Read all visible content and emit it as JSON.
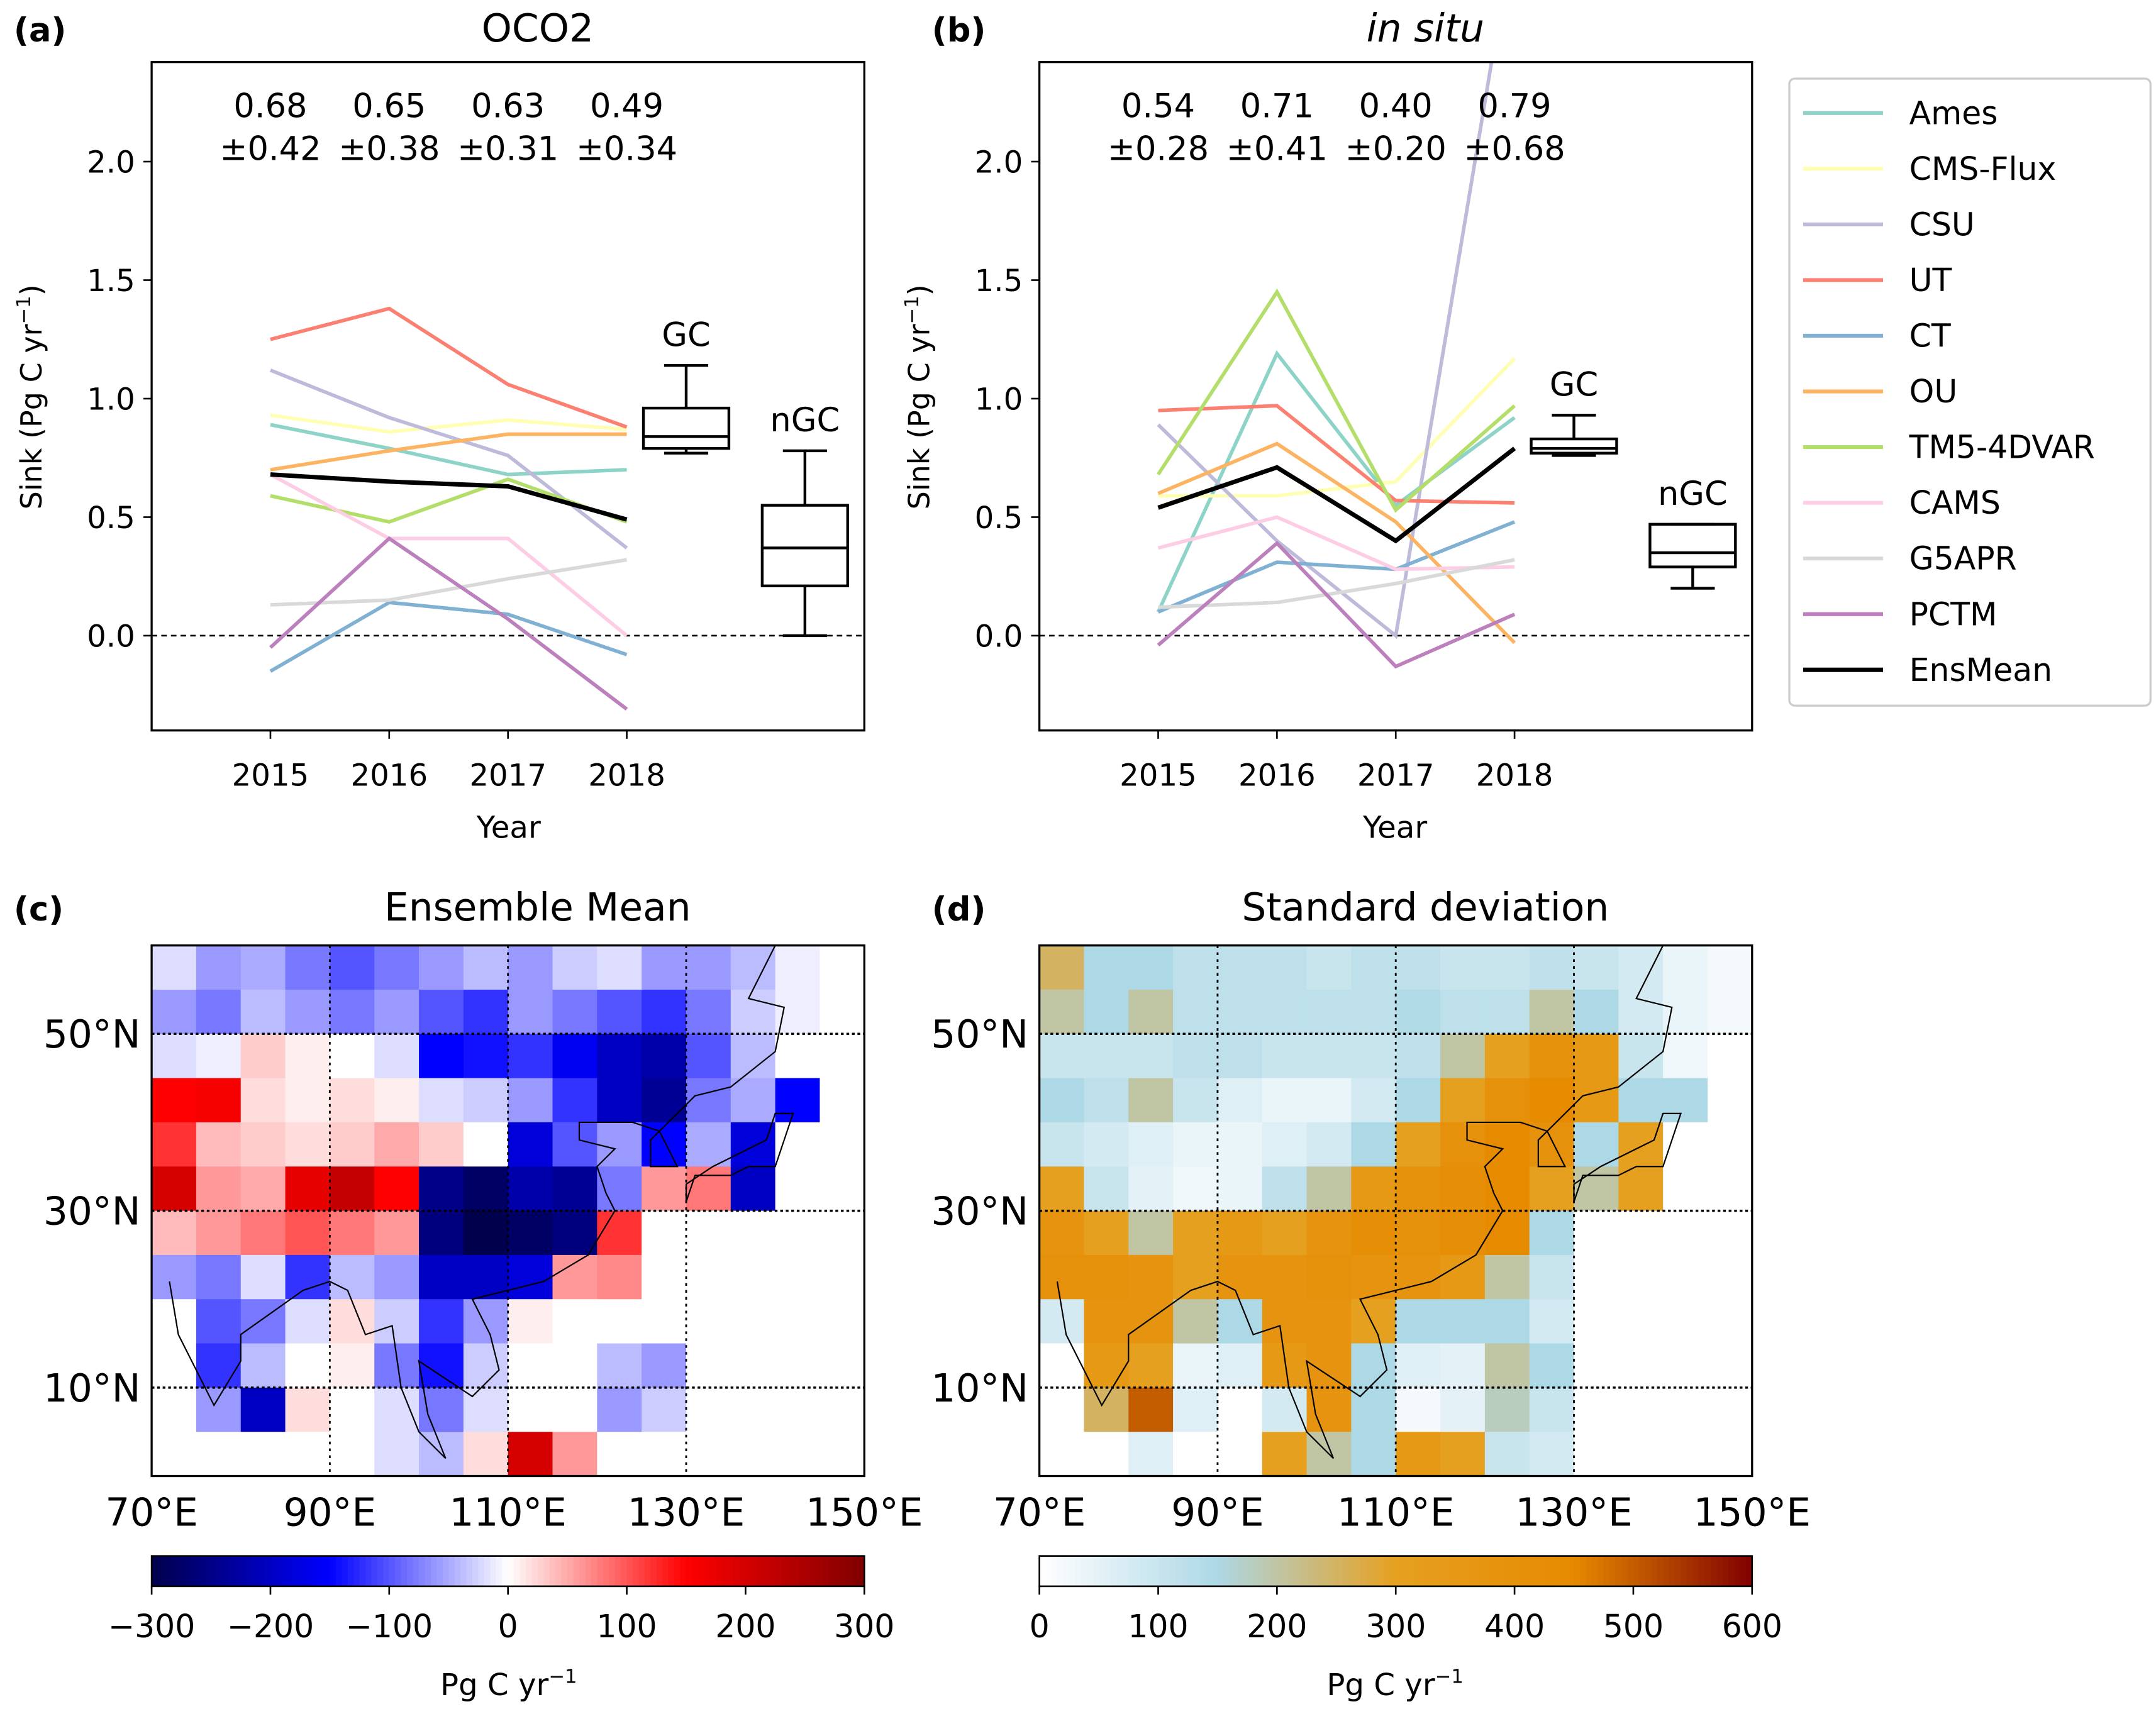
{
  "chart_data": [
    {
      "type": "line",
      "panel": "(a)",
      "title": "OCO2",
      "xlabel": "Year",
      "ylabel": "Sink (Pg C yr",
      "ylabel_sup": "−1",
      "ylabel_end": ")",
      "x": [
        2015,
        2016,
        2017,
        2018
      ],
      "xticks": [
        "2015",
        "2016",
        "2017",
        "2018"
      ],
      "yticks": [
        "0.0",
        "0.5",
        "1.0",
        "1.5",
        "2.0"
      ],
      "ylim": [
        -0.4,
        2.42
      ],
      "xlim": [
        2014,
        2020
      ],
      "zero_line": true,
      "annotations": {
        "means": [
          "0.68",
          "0.65",
          "0.63",
          "0.49"
        ],
        "stds": [
          "±0.42",
          "±0.38",
          "±0.31",
          "±0.34"
        ]
      },
      "series": [
        {
          "name": "Ames",
          "values": [
            0.89,
            0.79,
            0.68,
            0.7
          ]
        },
        {
          "name": "CMS-Flux",
          "values": [
            0.93,
            0.86,
            0.91,
            0.87
          ]
        },
        {
          "name": "CSU",
          "values": [
            1.12,
            0.92,
            0.76,
            0.37
          ]
        },
        {
          "name": "UT",
          "values": [
            1.25,
            1.38,
            1.06,
            0.88
          ]
        },
        {
          "name": "CT",
          "values": [
            -0.15,
            0.14,
            0.09,
            -0.08
          ]
        },
        {
          "name": "OU",
          "values": [
            0.7,
            0.78,
            0.85,
            0.85
          ]
        },
        {
          "name": "TM5-4DVAR",
          "values": [
            0.59,
            0.48,
            0.66,
            0.48
          ]
        },
        {
          "name": "CAMS",
          "values": [
            0.68,
            0.41,
            0.41,
            0.0
          ]
        },
        {
          "name": "G5APR",
          "values": [
            0.13,
            0.15,
            0.24,
            0.32
          ]
        },
        {
          "name": "PCTM",
          "values": [
            -0.05,
            0.41,
            0.07,
            -0.31
          ]
        },
        {
          "name": "EnsMean",
          "values": [
            0.68,
            0.65,
            0.63,
            0.49
          ]
        }
      ],
      "boxes": [
        {
          "label": "GC",
          "x": 2018.5,
          "whislo": 0.77,
          "q1": 0.79,
          "med": 0.84,
          "q3": 0.96,
          "whishi": 1.14
        },
        {
          "label": "nGC",
          "x": 2019.5,
          "whislo": 0.0,
          "q1": 0.21,
          "med": 0.37,
          "q3": 0.55,
          "whishi": 0.78
        }
      ]
    },
    {
      "type": "line",
      "panel": "(b)",
      "title": "in situ",
      "xlabel": "Year",
      "ylabel": "Sink (Pg C yr",
      "ylabel_sup": "−1",
      "ylabel_end": ")",
      "x": [
        2015,
        2016,
        2017,
        2018
      ],
      "xticks": [
        "2015",
        "2016",
        "2017",
        "2018"
      ],
      "yticks": [
        "0.0",
        "0.5",
        "1.0",
        "1.5",
        "2.0"
      ],
      "ylim": [
        -0.4,
        2.42
      ],
      "xlim": [
        2014,
        2020
      ],
      "zero_line": true,
      "annotations": {
        "means": [
          "0.54",
          "0.71",
          "0.40",
          "0.79"
        ],
        "stds": [
          "±0.28",
          "±0.41",
          "±0.20",
          "±0.68"
        ]
      },
      "series": [
        {
          "name": "Ames",
          "values": [
            0.1,
            1.19,
            0.55,
            0.92
          ]
        },
        {
          "name": "CMS-Flux",
          "values": [
            0.59,
            0.59,
            0.65,
            1.17
          ]
        },
        {
          "name": "CSU",
          "values": [
            0.89,
            0.4,
            0.0,
            3.0
          ]
        },
        {
          "name": "UT",
          "values": [
            0.95,
            0.97,
            0.57,
            0.56
          ]
        },
        {
          "name": "CT",
          "values": [
            0.1,
            0.31,
            0.28,
            0.48
          ]
        },
        {
          "name": "OU",
          "values": [
            0.6,
            0.81,
            0.48,
            -0.03
          ]
        },
        {
          "name": "TM5-4DVAR",
          "values": [
            0.68,
            1.45,
            0.53,
            0.97
          ]
        },
        {
          "name": "CAMS",
          "values": [
            0.37,
            0.5,
            0.28,
            0.29
          ]
        },
        {
          "name": "G5APR",
          "values": [
            0.12,
            0.14,
            0.22,
            0.32
          ]
        },
        {
          "name": "PCTM",
          "values": [
            -0.04,
            0.39,
            -0.13,
            0.09
          ]
        },
        {
          "name": "EnsMean",
          "values": [
            0.54,
            0.71,
            0.4,
            0.79
          ]
        }
      ],
      "boxes": [
        {
          "label": "GC",
          "x": 2018.5,
          "whislo": 0.76,
          "q1": 0.77,
          "med": 0.79,
          "q3": 0.83,
          "whishi": 0.93
        },
        {
          "label": "nGC",
          "x": 2019.5,
          "whislo": 0.2,
          "q1": 0.29,
          "med": 0.35,
          "q3": 0.47,
          "whishi": 0.47
        }
      ]
    },
    {
      "type": "heatmap",
      "panel": "(c)",
      "title": "Ensemble Mean",
      "lon_range": [
        70,
        150
      ],
      "lat_range": [
        0,
        60
      ],
      "cell_deg": 5,
      "lon_ticks": [
        "70°E",
        "90°E",
        "110°E",
        "130°E",
        "150°E"
      ],
      "lat_ticks": [
        "50°N",
        "30°N",
        "10°N"
      ],
      "colorbar": {
        "min": -300,
        "max": 300,
        "ticks": [
          "−300",
          "−200",
          "−100",
          "0",
          "100",
          "200",
          "300"
        ],
        "label": "Pg C yr",
        "label_sup": "−1",
        "colormap": [
          "#00004c",
          "#0000ff",
          "#ffffff",
          "#ff0000",
          "#800000"
        ]
      },
      "grid_rows_north_to_south": [
        [
          -20,
          -60,
          -50,
          -80,
          -100,
          -80,
          -60,
          -40,
          -60,
          -30,
          -20,
          -60,
          -60,
          -40,
          -10,
          0
        ],
        [
          -60,
          -80,
          -40,
          -60,
          -80,
          -60,
          -100,
          -120,
          -60,
          -80,
          -100,
          -120,
          -80,
          -30,
          -10,
          0
        ],
        [
          -20,
          -10,
          30,
          10,
          0,
          -20,
          -150,
          -140,
          -120,
          -160,
          -200,
          -220,
          -100,
          -40,
          0,
          0
        ],
        [
          150,
          160,
          20,
          10,
          20,
          10,
          -20,
          -30,
          -60,
          -120,
          -200,
          -240,
          -80,
          -50,
          -150,
          0
        ],
        [
          120,
          40,
          30,
          20,
          30,
          50,
          30,
          0,
          -180,
          -100,
          -60,
          -150,
          -50,
          -180,
          0,
          0
        ],
        [
          200,
          60,
          50,
          180,
          220,
          150,
          -250,
          -280,
          -220,
          -240,
          -80,
          60,
          80,
          -200,
          0,
          0
        ],
        [
          40,
          60,
          80,
          100,
          80,
          60,
          -260,
          -300,
          -280,
          -260,
          120,
          0,
          0,
          0,
          0,
          0
        ],
        [
          -60,
          -80,
          -20,
          -120,
          -40,
          -60,
          -200,
          -200,
          -180,
          60,
          70,
          0,
          0,
          0,
          0,
          0
        ],
        [
          0,
          -100,
          -80,
          -20,
          20,
          -30,
          -120,
          -60,
          10,
          0,
          0,
          0,
          0,
          0,
          0,
          0
        ],
        [
          0,
          -120,
          -40,
          0,
          10,
          -80,
          -140,
          -30,
          0,
          0,
          -40,
          -60,
          0,
          0,
          0,
          0
        ],
        [
          0,
          -60,
          -200,
          20,
          0,
          -20,
          -80,
          -20,
          0,
          0,
          -60,
          -30,
          0,
          0,
          0,
          0
        ],
        [
          0,
          0,
          0,
          0,
          0,
          -20,
          -40,
          20,
          200,
          60,
          0,
          0,
          0,
          0,
          0,
          0
        ]
      ]
    },
    {
      "type": "heatmap",
      "panel": "(d)",
      "title": "Standard deviation",
      "lon_range": [
        70,
        150
      ],
      "lat_range": [
        0,
        60
      ],
      "cell_deg": 5,
      "lon_ticks": [
        "70°E",
        "90°E",
        "110°E",
        "130°E",
        "150°E"
      ],
      "lat_ticks": [
        "50°N",
        "30°N",
        "10°N"
      ],
      "colorbar": {
        "min": 0,
        "max": 600,
        "ticks": [
          "0",
          "100",
          "200",
          "300",
          "400",
          "500",
          "600"
        ],
        "label": "Pg C yr",
        "label_sup": "−1",
        "colormap": [
          "#ffffff",
          "#add8e6",
          "#e6a020",
          "#e68a00",
          "#800000"
        ]
      },
      "grid_rows_north_to_south": [
        [
          250,
          150,
          150,
          120,
          120,
          120,
          100,
          120,
          120,
          100,
          100,
          120,
          100,
          80,
          40,
          20
        ],
        [
          200,
          150,
          200,
          120,
          120,
          120,
          120,
          120,
          140,
          120,
          120,
          200,
          150,
          80,
          40,
          20
        ],
        [
          100,
          100,
          100,
          120,
          120,
          100,
          100,
          100,
          120,
          200,
          300,
          400,
          350,
          100,
          30,
          0
        ],
        [
          150,
          120,
          200,
          100,
          60,
          40,
          40,
          80,
          150,
          300,
          400,
          450,
          350,
          150,
          150,
          0
        ],
        [
          100,
          80,
          60,
          40,
          40,
          60,
          80,
          150,
          300,
          400,
          450,
          400,
          150,
          300,
          0,
          0
        ],
        [
          300,
          100,
          50,
          30,
          40,
          120,
          200,
          350,
          400,
          420,
          450,
          300,
          200,
          300,
          0,
          0
        ],
        [
          380,
          300,
          200,
          300,
          350,
          300,
          380,
          420,
          400,
          420,
          450,
          150,
          0,
          0,
          0,
          0
        ],
        [
          400,
          400,
          380,
          300,
          380,
          380,
          400,
          380,
          380,
          350,
          200,
          100,
          0,
          0,
          0,
          0
        ],
        [
          80,
          380,
          380,
          200,
          150,
          380,
          380,
          300,
          150,
          150,
          150,
          80,
          0,
          0,
          0,
          0
        ],
        [
          0,
          350,
          300,
          40,
          60,
          350,
          380,
          150,
          60,
          50,
          200,
          150,
          0,
          0,
          0,
          0
        ],
        [
          0,
          250,
          500,
          60,
          0,
          80,
          380,
          150,
          20,
          50,
          180,
          100,
          0,
          0,
          0,
          0
        ],
        [
          0,
          0,
          60,
          0,
          0,
          300,
          200,
          150,
          350,
          300,
          100,
          80,
          0,
          0,
          0,
          0
        ]
      ]
    }
  ],
  "legend": {
    "entries": [
      "Ames",
      "CMS-Flux",
      "CSU",
      "UT",
      "CT",
      "OU",
      "TM5-4DVAR",
      "CAMS",
      "G5APR",
      "PCTM",
      "EnsMean"
    ],
    "colors": [
      "#8dd3c7",
      "#ffffb3",
      "#bebada",
      "#fb8072",
      "#80b1d3",
      "#fdb462",
      "#b3de69",
      "#fccde5",
      "#d9d9d9",
      "#bc80bd",
      "#000000"
    ]
  }
}
